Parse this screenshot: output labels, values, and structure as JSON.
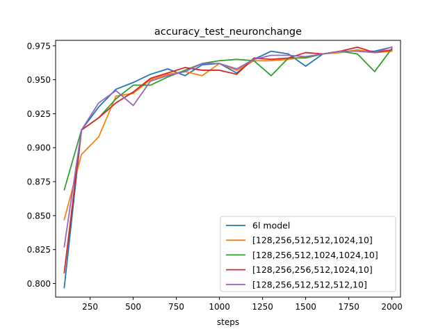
{
  "chart_data": {
    "type": "line",
    "title": "accuracy_test_neuronchange",
    "xlabel": "steps",
    "ylabel": "",
    "xlim": [
      50,
      2050
    ],
    "ylim": [
      0.79,
      0.979
    ],
    "xticks": [
      250,
      500,
      750,
      1000,
      1250,
      1500,
      1750,
      2000
    ],
    "yticks": [
      0.8,
      0.825,
      0.85,
      0.875,
      0.9,
      0.925,
      0.95,
      0.975
    ],
    "ytick_labels": [
      "0.800",
      "0.825",
      "0.850",
      "0.875",
      "0.900",
      "0.925",
      "0.950",
      "0.975"
    ],
    "grid": false,
    "legend_position": "lower-right",
    "x": [
      100,
      200,
      300,
      400,
      500,
      600,
      700,
      800,
      900,
      1000,
      1100,
      1200,
      1300,
      1400,
      1500,
      1600,
      1700,
      1800,
      1900,
      2000
    ],
    "series": [
      {
        "name": "6l model",
        "color": "#1f77b4",
        "values": [
          0.797,
          0.913,
          0.93,
          0.943,
          0.948,
          0.954,
          0.958,
          0.953,
          0.961,
          0.962,
          0.955,
          0.965,
          0.971,
          0.969,
          0.96,
          0.969,
          0.971,
          0.971,
          0.971,
          0.974
        ]
      },
      {
        "name": "[128,256,512,512,1024,10]",
        "color": "#ff7f0e",
        "values": [
          0.847,
          0.895,
          0.908,
          0.938,
          0.94,
          0.95,
          0.954,
          0.956,
          0.953,
          0.962,
          0.957,
          0.964,
          0.964,
          0.965,
          0.967,
          0.969,
          0.97,
          0.972,
          0.97,
          0.971
        ]
      },
      {
        "name": "[128,256,512,1024,1024,10]",
        "color": "#2ca02c",
        "values": [
          0.869,
          0.913,
          0.922,
          0.936,
          0.946,
          0.946,
          0.952,
          0.957,
          0.962,
          0.964,
          0.965,
          0.964,
          0.953,
          0.966,
          0.966,
          0.969,
          0.971,
          0.969,
          0.956,
          0.973
        ]
      },
      {
        "name": "[128,256,256,512,1024,10]",
        "color": "#d62728",
        "values": [
          0.808,
          0.913,
          0.922,
          0.933,
          0.941,
          0.951,
          0.955,
          0.959,
          0.957,
          0.957,
          0.954,
          0.966,
          0.965,
          0.966,
          0.97,
          0.969,
          0.971,
          0.974,
          0.97,
          0.972
        ]
      },
      {
        "name": "[128,256,512,512,512,10]",
        "color": "#9467bd",
        "values": [
          0.827,
          0.913,
          0.933,
          0.942,
          0.931,
          0.949,
          0.953,
          0.956,
          0.962,
          0.962,
          0.958,
          0.965,
          0.968,
          0.968,
          0.967,
          0.969,
          0.971,
          0.971,
          0.97,
          0.974
        ]
      }
    ]
  }
}
